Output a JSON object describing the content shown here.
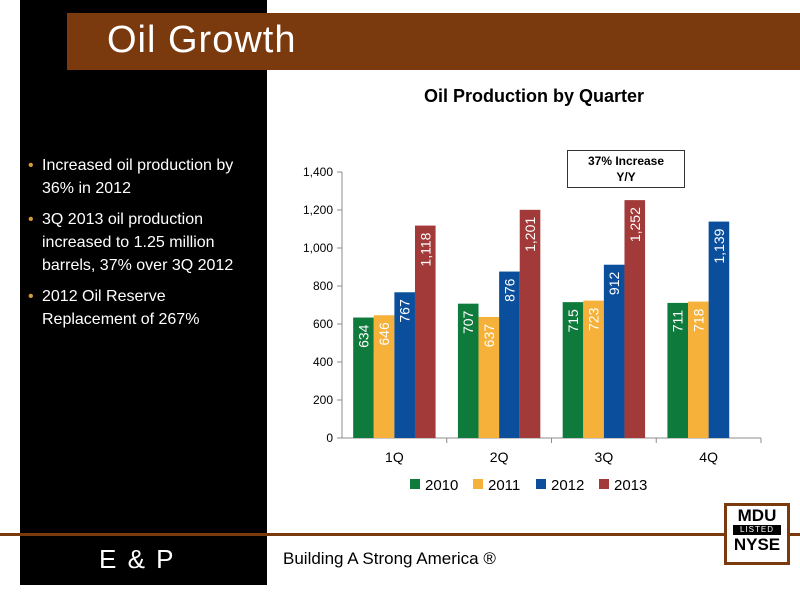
{
  "slide": {
    "title": "Oil Growth",
    "bullets": [
      "Increased oil production by 36% in 2012",
      "3Q 2013 oil production increased to 1.25 million barrels, 37% over 3Q 2012",
      "2012 Oil Reserve Replacement of  267%"
    ],
    "footer_segment": "E & P",
    "tagline": "Building A Strong America ®",
    "logo": {
      "top": "MDU",
      "middle": "LISTED",
      "bottom": "NYSE"
    }
  },
  "colors": {
    "brown_accent": "#7a3a0e",
    "bullet_orange": "#d59a3a",
    "series": [
      "#0e7a3c",
      "#f5b13a",
      "#0b4f9c",
      "#a23a3a"
    ]
  },
  "chart_data": {
    "type": "bar",
    "title": "Oil Production by Quarter",
    "categories": [
      "1Q",
      "2Q",
      "3Q",
      "4Q"
    ],
    "series": [
      {
        "name": "2010",
        "values": [
          634,
          707,
          715,
          711
        ],
        "labels": [
          "634",
          "707",
          "715",
          "711"
        ]
      },
      {
        "name": "2011",
        "values": [
          646,
          637,
          723,
          718
        ],
        "labels": [
          "646",
          "637",
          "723",
          "718"
        ]
      },
      {
        "name": "2012",
        "values": [
          767,
          876,
          912,
          1139
        ],
        "labels": [
          "767",
          "876",
          "912",
          "1,139"
        ]
      },
      {
        "name": "2013",
        "values": [
          1118,
          1201,
          1252,
          null
        ],
        "labels": [
          "1,118",
          "1,201",
          "1,252",
          ""
        ]
      }
    ],
    "ylim": [
      0,
      1400
    ],
    "yticks": [
      0,
      200,
      400,
      600,
      800,
      1000,
      1200,
      1400
    ],
    "ytick_labels": [
      "0",
      "200",
      "400",
      "600",
      "800",
      "1,000",
      "1,200",
      "1,400"
    ],
    "grid": false,
    "legend": "bottom",
    "annotation": {
      "line1": "37% Increase",
      "line2": "Y/Y"
    }
  }
}
